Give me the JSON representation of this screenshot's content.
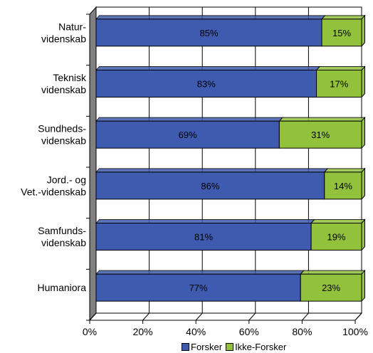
{
  "chart_data": {
    "type": "bar",
    "orientation": "horizontal",
    "stacked": true,
    "categories": [
      [
        "Natur-",
        "videnskab"
      ],
      [
        "Teknisk",
        "videnskab"
      ],
      [
        "Sundheds-",
        "videnskab"
      ],
      [
        "Jord.- og",
        "Vet.-videnskab"
      ],
      [
        "Samfunds-",
        "videnskab"
      ],
      [
        "Humaniora"
      ]
    ],
    "series": [
      {
        "name": "Forsker",
        "values": [
          85,
          83,
          69,
          86,
          81,
          77
        ],
        "color": "#3f5bb0",
        "labels": [
          "85%",
          "83%",
          "69%",
          "86%",
          "81%",
          "77%"
        ]
      },
      {
        "name": "Ikke-Forsker",
        "values": [
          15,
          17,
          31,
          14,
          19,
          23
        ],
        "color": "#92c13c",
        "labels": [
          "15%",
          "17%",
          "31%",
          "14%",
          "19%",
          "23%"
        ]
      }
    ],
    "xlim": [
      0,
      100
    ],
    "xticks": [
      0,
      20,
      40,
      60,
      80,
      100
    ],
    "xtick_labels": [
      "0%",
      "20%",
      "40%",
      "60%",
      "80%",
      "100%"
    ],
    "grid": true,
    "legend_position": "bottom",
    "style": "3d",
    "wall_color": "#808080"
  },
  "legend": {
    "items": [
      "Forsker",
      "Ikke-Forsker"
    ]
  }
}
